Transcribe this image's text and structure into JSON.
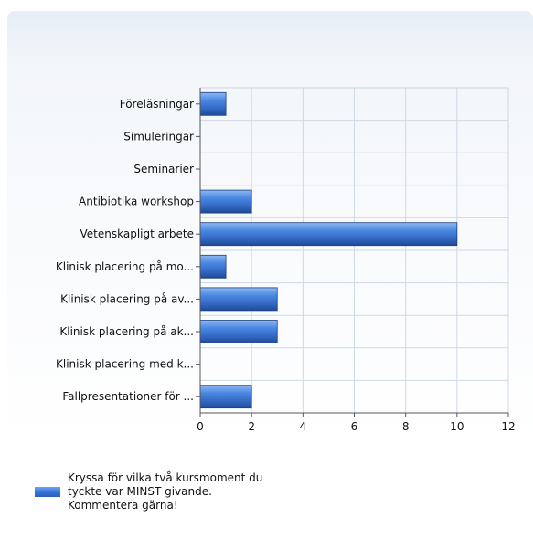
{
  "chart_data": {
    "type": "bar",
    "orientation": "horizontal",
    "categories": [
      "Föreläsningar",
      "Simuleringar",
      "Seminarier",
      "Antibiotika workshop",
      "Vetenskapligt arbete",
      "Klinisk placering på mo...",
      "Klinisk placering på av...",
      "Klinisk placering på ak...",
      "Klinisk placering med k...",
      "Fallpresentationer för ..."
    ],
    "series": [
      {
        "name": "Kryssa för vilka två kursmoment du tyckte var MINST givande. Kommentera gärna!",
        "values": [
          1,
          0,
          0,
          2,
          10,
          1,
          3,
          3,
          0,
          2
        ]
      }
    ],
    "xlim": [
      0,
      12
    ],
    "x_ticks": [
      "0",
      "2",
      "4",
      "6",
      "8",
      "10",
      "12"
    ],
    "grid": true,
    "legend_position": "bottom-left",
    "colors": {
      "bar": "#3a78d8",
      "grid": "#cfd8e6",
      "axis": "#555555"
    }
  }
}
